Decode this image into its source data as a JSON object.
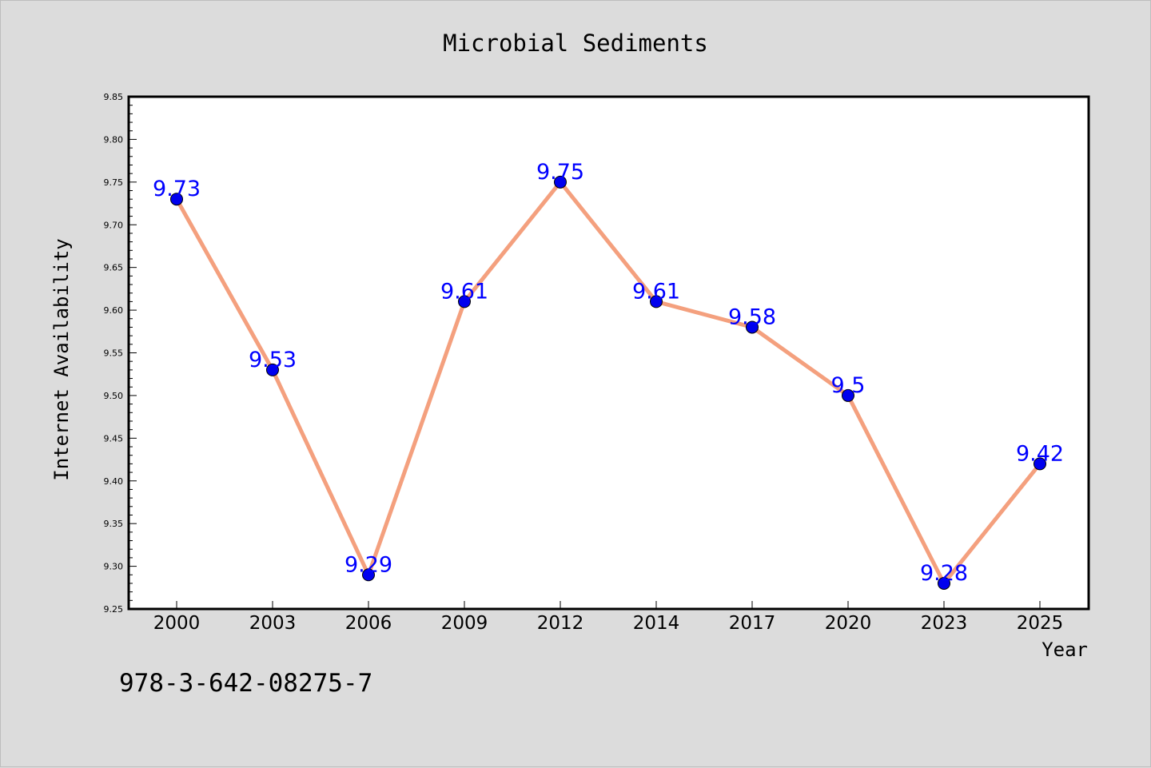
{
  "chart_data": {
    "type": "line",
    "title": "Microbial Sediments",
    "xlabel": "Year",
    "ylabel": "Internet Availability",
    "categories": [
      "2000",
      "2003",
      "2006",
      "2009",
      "2012",
      "2014",
      "2017",
      "2020",
      "2023",
      "2025"
    ],
    "series": [
      {
        "values": [
          9.73,
          9.53,
          9.29,
          9.61,
          9.75,
          9.61,
          9.58,
          9.5,
          9.28,
          9.42
        ],
        "labels": [
          "9.73",
          "9.53",
          "9.29",
          "9.61",
          "9.75",
          "9.61",
          "9.58",
          "9.5",
          "9.28",
          "9.42"
        ]
      }
    ],
    "ylim": [
      9.25,
      9.85
    ],
    "yticks": [
      "9.25",
      "9.30",
      "9.35",
      "9.40",
      "9.45",
      "9.50",
      "9.55",
      "9.60",
      "9.65",
      "9.70",
      "9.75",
      "9.80",
      "9.85"
    ],
    "grid": false,
    "legend": "none",
    "colors": {
      "line": "#f4a07e",
      "marker": "#0000ee",
      "data_label": "#0000ff",
      "plot_bg": "#ffffff",
      "page_bg": "#dcdcdc"
    }
  },
  "footer_text": "978-3-642-08275-7"
}
